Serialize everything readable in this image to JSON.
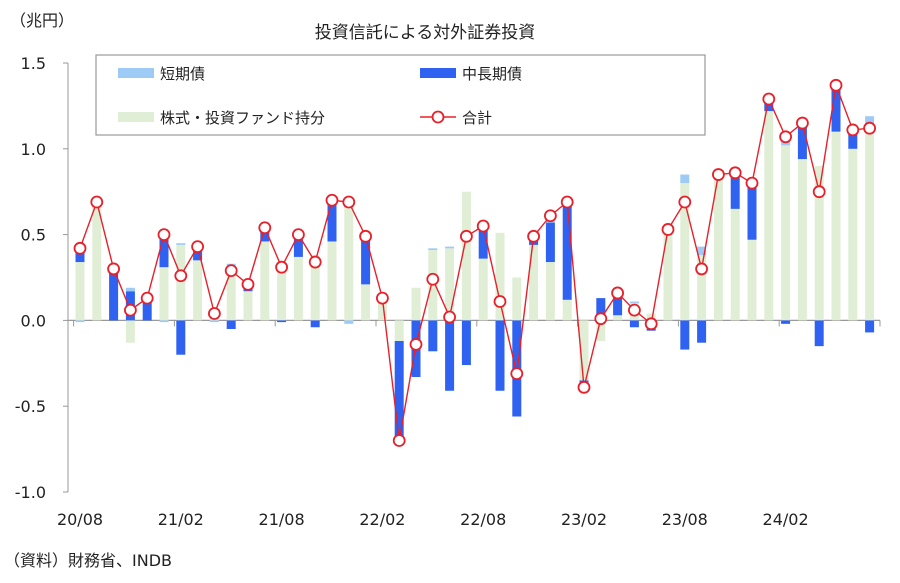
{
  "chart_data": {
    "type": "bar",
    "title": "投資信託による対外証券投資",
    "ylabel": "（兆円）",
    "source": "（資料）財務省、INDB",
    "ylim": [
      -1.0,
      1.5
    ],
    "yticks": [
      "1.5",
      "1.0",
      "0.5",
      "0.0",
      "-0.5",
      "-1.0"
    ],
    "ytick_values": [
      1.5,
      1.0,
      0.5,
      0.0,
      -0.5,
      -1.0
    ],
    "xtick_labels": [
      "20/08",
      "21/02",
      "21/08",
      "22/02",
      "22/08",
      "23/02",
      "23/08",
      "24/02"
    ],
    "xtick_index": [
      0,
      6,
      12,
      18,
      24,
      30,
      36,
      42
    ],
    "n_months": 48,
    "legend": [
      {
        "name": "短期債",
        "color": "#9ecbf5",
        "kind": "bar"
      },
      {
        "name": "中長期債",
        "color": "#2f62f0",
        "kind": "bar"
      },
      {
        "name": "株式・投資ファンド持分",
        "color": "#e1eed6",
        "kind": "bar"
      },
      {
        "name": "合計",
        "color": "#e8202a",
        "kind": "line"
      }
    ],
    "series": [
      {
        "name": "株式・投資ファンド持分",
        "values": [
          0.34,
          0.67,
          0,
          -0.13,
          0,
          0.31,
          0.44,
          0.35,
          0.04,
          0.32,
          0.17,
          0.46,
          0.31,
          0.37,
          0.38,
          0.46,
          0.66,
          0.21,
          0.13,
          -0.12,
          0.19,
          0.41,
          0.42,
          0.75,
          0.36,
          0.51,
          0.25,
          0.44,
          0.34,
          0.12,
          -0.35,
          -0.12,
          0.03,
          0.1,
          0.04,
          0.53,
          0.8,
          0.38,
          0.85,
          0.65,
          0.47,
          1.22,
          1.02,
          0.94,
          0.9,
          1.1,
          1.0,
          1.13
        ]
      },
      {
        "name": "中長期債",
        "values": [
          0.08,
          0.02,
          0.3,
          0.17,
          0.13,
          0.19,
          -0.2,
          0.08,
          0,
          -0.05,
          0.04,
          0.08,
          -0.01,
          0.12,
          -0.04,
          0.24,
          0.05,
          0.28,
          0,
          -0.58,
          -0.33,
          -0.18,
          -0.41,
          -0.26,
          0.19,
          -0.41,
          -0.56,
          0.05,
          0.23,
          0.56,
          -0.04,
          0.13,
          0.12,
          -0.04,
          -0.06,
          0,
          -0.17,
          -0.13,
          0,
          0.21,
          0.33,
          0.07,
          -0.02,
          0.21,
          -0.15,
          0.27,
          0.11,
          -0.07
        ]
      },
      {
        "name": "短期債",
        "values": [
          -0.01,
          0,
          0,
          0.02,
          0,
          -0.01,
          0.01,
          0,
          -0.01,
          0.01,
          0,
          0,
          0,
          0,
          0,
          0,
          -0.02,
          0,
          0,
          0,
          0,
          0.01,
          0.01,
          0,
          0,
          0,
          0,
          0,
          0.04,
          0,
          0,
          0,
          0,
          0.01,
          0,
          0,
          0.05,
          0.05,
          0,
          0,
          0,
          0,
          0.02,
          0,
          0,
          0,
          0,
          0.06
        ]
      },
      {
        "name": "合計",
        "values": [
          0.42,
          0.69,
          0.3,
          0.06,
          0.13,
          0.5,
          0.26,
          0.43,
          0.04,
          0.29,
          0.21,
          0.54,
          0.31,
          0.5,
          0.34,
          0.7,
          0.69,
          0.49,
          0.13,
          -0.7,
          -0.14,
          0.24,
          0.02,
          0.49,
          0.55,
          0.11,
          -0.31,
          0.49,
          0.61,
          0.69,
          -0.39,
          0.01,
          0.16,
          0.06,
          -0.02,
          0.53,
          0.69,
          0.3,
          0.85,
          0.86,
          0.8,
          1.29,
          1.07,
          1.15,
          0.75,
          1.37,
          1.11,
          1.12
        ]
      }
    ]
  }
}
